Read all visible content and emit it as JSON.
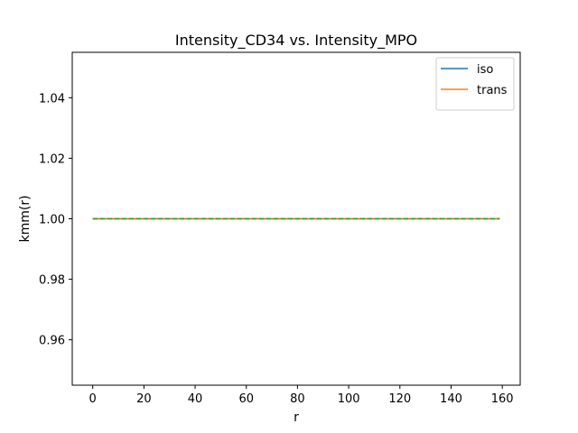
{
  "chart_data": {
    "type": "line",
    "title": "Intensity_CD34 vs. Intensity_MPO",
    "xlabel": "r",
    "ylabel": "kmm(r)",
    "xlim": [
      -8,
      167
    ],
    "ylim": [
      0.945,
      1.055
    ],
    "xticks": [
      0,
      20,
      40,
      60,
      80,
      100,
      120,
      140,
      160
    ],
    "xtick_labels": [
      "0",
      "20",
      "40",
      "60",
      "80",
      "100",
      "120",
      "140",
      "160"
    ],
    "yticks": [
      0.96,
      0.98,
      1.0,
      1.02,
      1.04
    ],
    "ytick_labels": [
      "0.96",
      "0.98",
      "1.00",
      "1.02",
      "1.04"
    ],
    "grid": false,
    "legend": {
      "position": "top-right",
      "entries": [
        "iso",
        "trans"
      ]
    },
    "series": [
      {
        "name": "iso",
        "color": "#1f77b4",
        "style": "solid",
        "x": [
          0,
          159
        ],
        "y": [
          1.0,
          1.0
        ]
      },
      {
        "name": "trans",
        "color": "#ff7f0e",
        "style": "solid",
        "x": [
          0,
          159
        ],
        "y": [
          1.0,
          1.0
        ]
      },
      {
        "color": "#2ca02c",
        "style": "dashed",
        "x": [
          0,
          159
        ],
        "y": [
          1.0,
          1.0
        ]
      }
    ]
  }
}
